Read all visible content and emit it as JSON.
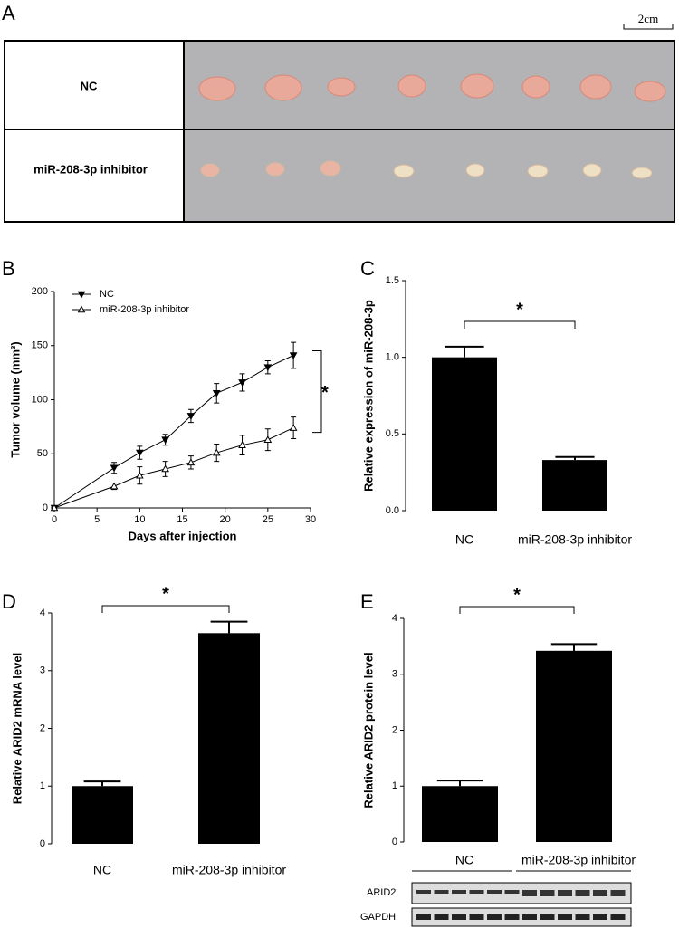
{
  "photo_panel": {
    "panel": "A",
    "scale_bar": "2cm",
    "rows": [
      "NC",
      "miR-208-3p inhibitor"
    ]
  },
  "chart_data": [
    {
      "type": "line",
      "panel": "B",
      "xlabel": "Days after injection",
      "ylabel": "Tumor volume (mm³)",
      "x": [
        0,
        7,
        10,
        13,
        16,
        19,
        22,
        25,
        28
      ],
      "series": [
        {
          "name": "NC",
          "color": "#000000",
          "marker": "v",
          "marker_fill": "#000000",
          "values": [
            0,
            37,
            51,
            63,
            85,
            106,
            116,
            130,
            141
          ],
          "errors": [
            0,
            5,
            6,
            5,
            6,
            9,
            8,
            6,
            12
          ]
        },
        {
          "name": "miR-208-3p inhibitor",
          "color": "#000000",
          "marker": "^",
          "marker_fill": "#ffffff",
          "values": [
            0,
            20,
            30,
            36,
            42,
            51,
            58,
            63,
            74
          ],
          "errors": [
            0,
            3,
            8,
            7,
            6,
            8,
            9,
            10,
            10
          ]
        }
      ],
      "xlim": [
        0,
        30
      ],
      "xticks": [
        0,
        5,
        10,
        15,
        20,
        25,
        30
      ],
      "ylim": [
        0,
        200
      ],
      "yticks": [
        0,
        50,
        100,
        150,
        200
      ],
      "significance": "*"
    },
    {
      "type": "bar",
      "panel": "C",
      "ylabel": "Relative expression of miR-208-3p",
      "categories": [
        "NC",
        "miR-208-3p inhibitor"
      ],
      "values": [
        1.0,
        0.33
      ],
      "errors": [
        0.07,
        0.02
      ],
      "color": "#000000",
      "ylim": [
        0,
        1.5
      ],
      "yticks": [
        {
          "value": 0,
          "label": "0.0"
        },
        0.5,
        {
          "value": 1,
          "label": "1.0"
        },
        1.5
      ],
      "significance": "*"
    },
    {
      "type": "bar",
      "panel": "D",
      "ylabel": "Relative ARID2 mRNA level",
      "categories": [
        "NC",
        "miR-208-3p inhibitor"
      ],
      "values": [
        1.0,
        3.65
      ],
      "errors": [
        0.08,
        0.2
      ],
      "color": "#000000",
      "ylim": [
        0,
        4
      ],
      "yticks": [
        0,
        1,
        2,
        3,
        4
      ],
      "significance": "*"
    },
    {
      "type": "bar",
      "panel": "E",
      "ylabel": "Relative ARID2 protein level",
      "categories": [
        "NC",
        "miR-208-3p inhibitor"
      ],
      "values": [
        1.0,
        3.42
      ],
      "errors": [
        0.1,
        0.12
      ],
      "color": "#000000",
      "ylim": [
        0,
        4
      ],
      "yticks": [
        0,
        1,
        2,
        3,
        4
      ],
      "significance": "*"
    }
  ],
  "blot": {
    "bands": [
      "ARID2",
      "GAPDH"
    ]
  }
}
